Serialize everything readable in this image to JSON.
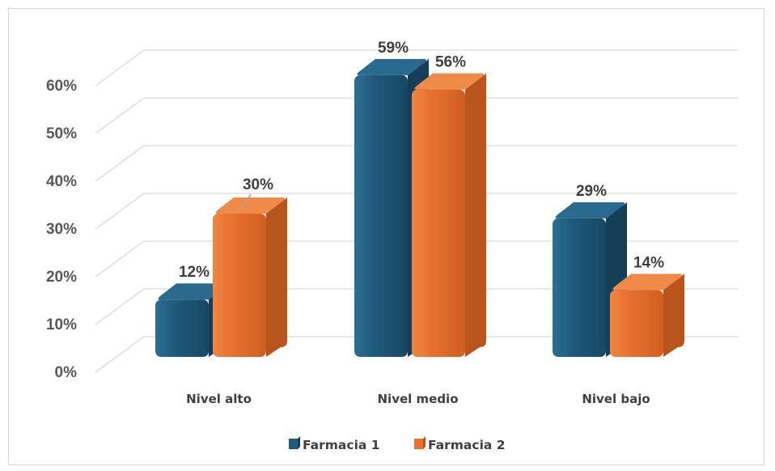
{
  "chart_data": {
    "type": "bar",
    "title": "",
    "xlabel": "",
    "ylabel": "",
    "categories": [
      "Nivel alto",
      "Nivel medio",
      "Nivel bajo"
    ],
    "series": [
      {
        "name": "Farmacia 1",
        "values": [
          12,
          59,
          29
        ],
        "labels": [
          "12%",
          "59%",
          "29%"
        ]
      },
      {
        "name": "Farmacia 2",
        "values": [
          30,
          56,
          14
        ],
        "labels": [
          "30%",
          "56%",
          "14%"
        ]
      }
    ],
    "ylim": [
      0,
      60
    ],
    "yticks": [
      0,
      10,
      20,
      30,
      40,
      50,
      60
    ],
    "ytick_labels": [
      "0%",
      "10%",
      "20%",
      "30%",
      "40%",
      "50%",
      "60%"
    ],
    "grid": true,
    "legend": "bottom",
    "style": "3d-clustered-column"
  },
  "colors": {
    "series": [
      "#1f5b7d",
      "#e8712f"
    ],
    "gridline": "#d9d9d9"
  }
}
